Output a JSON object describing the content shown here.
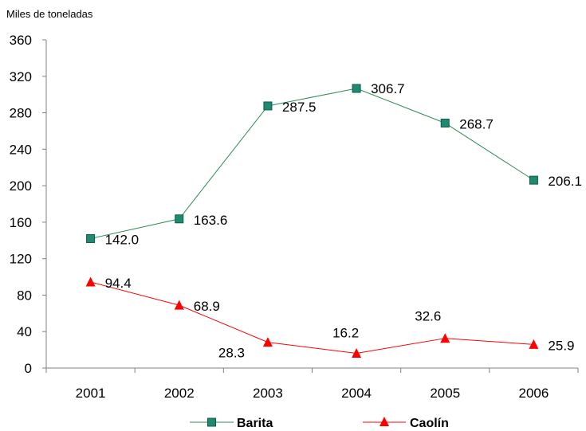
{
  "chart_data": {
    "type": "line",
    "unit_label": "Miles de  toneladas",
    "x": [
      "2001",
      "2002",
      "2003",
      "2004",
      "2005",
      "2006"
    ],
    "ylim": [
      0,
      360
    ],
    "yticks": [
      0,
      40,
      80,
      120,
      160,
      200,
      240,
      280,
      320,
      360
    ],
    "grid": false,
    "legend_position": "bottom",
    "series": [
      {
        "name": "Barita",
        "color": "#2E8B57",
        "marker": "square",
        "marker_fill": "#1F8A70",
        "values": [
          142.0,
          163.6,
          287.5,
          306.7,
          268.7,
          206.1
        ],
        "labels": [
          "142.0",
          "163.6",
          "287.5",
          "306.7",
          "268.7",
          "206.1"
        ]
      },
      {
        "name": "Caolín",
        "color": "#FF0000",
        "marker": "triangle",
        "marker_fill": "#FF0000",
        "values": [
          94.4,
          68.9,
          28.3,
          16.2,
          32.6,
          25.9
        ],
        "labels": [
          "94.4",
          "68.9",
          "28.3",
          "16.2",
          "32.6",
          "25.9"
        ]
      }
    ]
  }
}
